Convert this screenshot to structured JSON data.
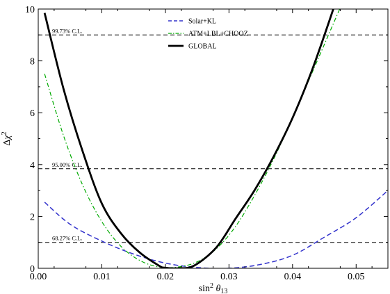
{
  "chart_data": {
    "type": "line",
    "xlabel": "sin² θ₁₃",
    "ylabel": "Δχ²",
    "xlim": [
      0.0,
      0.055
    ],
    "ylim": [
      0,
      10
    ],
    "xticks": [
      0.0,
      0.01,
      0.02,
      0.03,
      0.04,
      0.05
    ],
    "xtick_labels": [
      "0.00",
      "0.01",
      "0.02",
      "0.03",
      "0.04",
      "0.05"
    ],
    "yticks": [
      0,
      2,
      4,
      6,
      8,
      10
    ],
    "ytick_labels": [
      "0",
      "2",
      "4",
      "6",
      "8",
      "10"
    ],
    "grid": false,
    "legend_position": "top-center",
    "confidence_levels": [
      {
        "label": "99.73% C.L.",
        "value": 9.0
      },
      {
        "label": "95.00% C.L.",
        "value": 3.84
      },
      {
        "label": "68.27% C.L.",
        "value": 1.0
      }
    ],
    "series": [
      {
        "name": "Solar+KL",
        "color": "#3333cc",
        "style": "dashed",
        "width": 1.5,
        "x": [
          0.001,
          0.005,
          0.01,
          0.015,
          0.02,
          0.025,
          0.03,
          0.035,
          0.04,
          0.045,
          0.05,
          0.055
        ],
        "y": [
          2.55,
          1.7,
          1.05,
          0.55,
          0.2,
          0.03,
          0.0,
          0.15,
          0.5,
          1.2,
          1.95,
          3.0
        ]
      },
      {
        "name": "ATM+LBL+CHOOZ",
        "color": "#00aa00",
        "style": "dashdot",
        "width": 1.2,
        "x": [
          0.001,
          0.004,
          0.007,
          0.01,
          0.013,
          0.016,
          0.019,
          0.022,
          0.025,
          0.028,
          0.031,
          0.034,
          0.037,
          0.04,
          0.043,
          0.046,
          0.049,
          0.0505
        ],
        "y": [
          7.5,
          5.1,
          3.2,
          1.8,
          0.85,
          0.3,
          0.05,
          0.05,
          0.25,
          0.75,
          1.6,
          2.8,
          4.2,
          5.8,
          7.5,
          9.2,
          10.9,
          11.8
        ]
      },
      {
        "name": "GLOBAL",
        "color": "#000000",
        "style": "solid",
        "width": 2.8,
        "x": [
          0.001,
          0.004,
          0.007,
          0.01,
          0.013,
          0.016,
          0.019,
          0.02,
          0.022,
          0.0245,
          0.028,
          0.031,
          0.034,
          0.037,
          0.04,
          0.043,
          0.046,
          0.048
        ],
        "y": [
          9.85,
          6.9,
          4.5,
          2.5,
          1.35,
          0.6,
          0.1,
          0.02,
          0.0,
          0.1,
          0.8,
          1.9,
          3.0,
          4.3,
          5.8,
          7.6,
          9.7,
          11.2
        ]
      }
    ]
  }
}
